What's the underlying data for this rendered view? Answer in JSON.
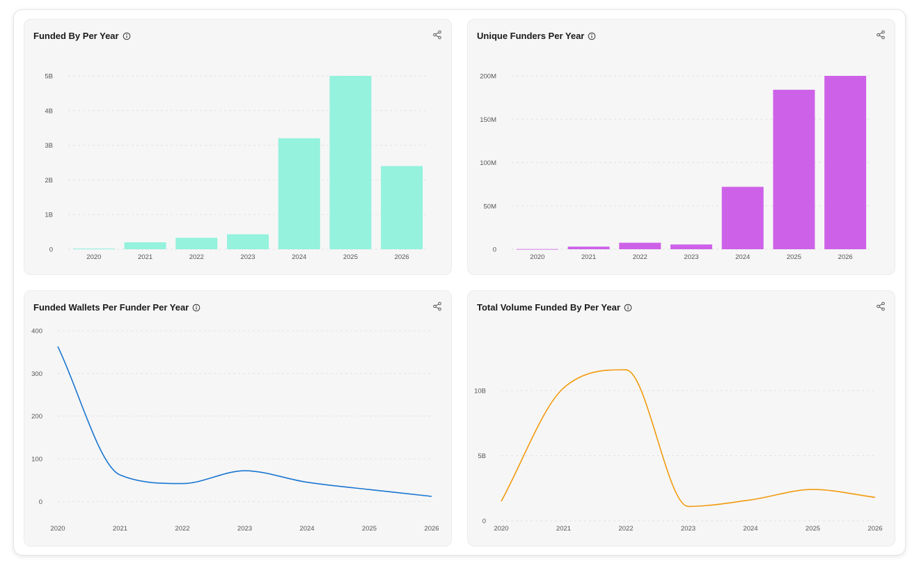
{
  "cards": [
    {
      "title": "Funded By Per Year",
      "chart_data": {
        "type": "bar",
        "categories": [
          "2020",
          "2021",
          "2022",
          "2023",
          "2024",
          "2025",
          "2026"
        ],
        "values": [
          0.02,
          0.2,
          0.33,
          0.43,
          3.2,
          5.0,
          2.4
        ],
        "ylim": [
          0,
          5
        ],
        "yticks": [
          0,
          1,
          2,
          3,
          4,
          5
        ],
        "ytick_labels": [
          "0",
          "1B",
          "2B",
          "3B",
          "4B",
          "5B"
        ],
        "grid": true,
        "color": "#94f2dd"
      }
    },
    {
      "title": "Unique Funders Per Year",
      "chart_data": {
        "type": "bar",
        "categories": [
          "2020",
          "2021",
          "2022",
          "2023",
          "2024",
          "2025",
          "2026"
        ],
        "values": [
          0.2,
          3,
          7.5,
          5.5,
          72,
          184,
          200
        ],
        "ylim": [
          0,
          200
        ],
        "yticks": [
          0,
          50,
          100,
          150,
          200
        ],
        "ytick_labels": [
          "0",
          "50M",
          "100M",
          "150M",
          "200M"
        ],
        "grid": true,
        "color": "#cd62e8"
      }
    },
    {
      "title": "Funded Wallets Per Funder Per Year",
      "chart_data": {
        "type": "line",
        "categories": [
          "2020",
          "2021",
          "2022",
          "2023",
          "2024",
          "2025",
          "2026"
        ],
        "values": [
          363,
          62,
          42,
          72,
          45,
          28,
          12
        ],
        "ylim": [
          -50,
          400
        ],
        "yticks": [
          0,
          100,
          200,
          300,
          400
        ],
        "ytick_labels": [
          "0",
          "100",
          "200",
          "300",
          "400"
        ],
        "grid": true,
        "color": "#1976d2"
      }
    },
    {
      "title": "Total Volume Funded By Per Year",
      "chart_data": {
        "type": "line",
        "categories": [
          "2020",
          "2021",
          "2022",
          "2023",
          "2024",
          "2025",
          "2026"
        ],
        "values": [
          1.5,
          10.2,
          11.6,
          1.1,
          1.6,
          2.4,
          1.8
        ],
        "ylim": [
          0,
          13
        ],
        "yticks": [
          0,
          5,
          10
        ],
        "ytick_labels": [
          "0",
          "5B",
          "10B"
        ],
        "grid": true,
        "color": "#f29a0c"
      }
    }
  ]
}
